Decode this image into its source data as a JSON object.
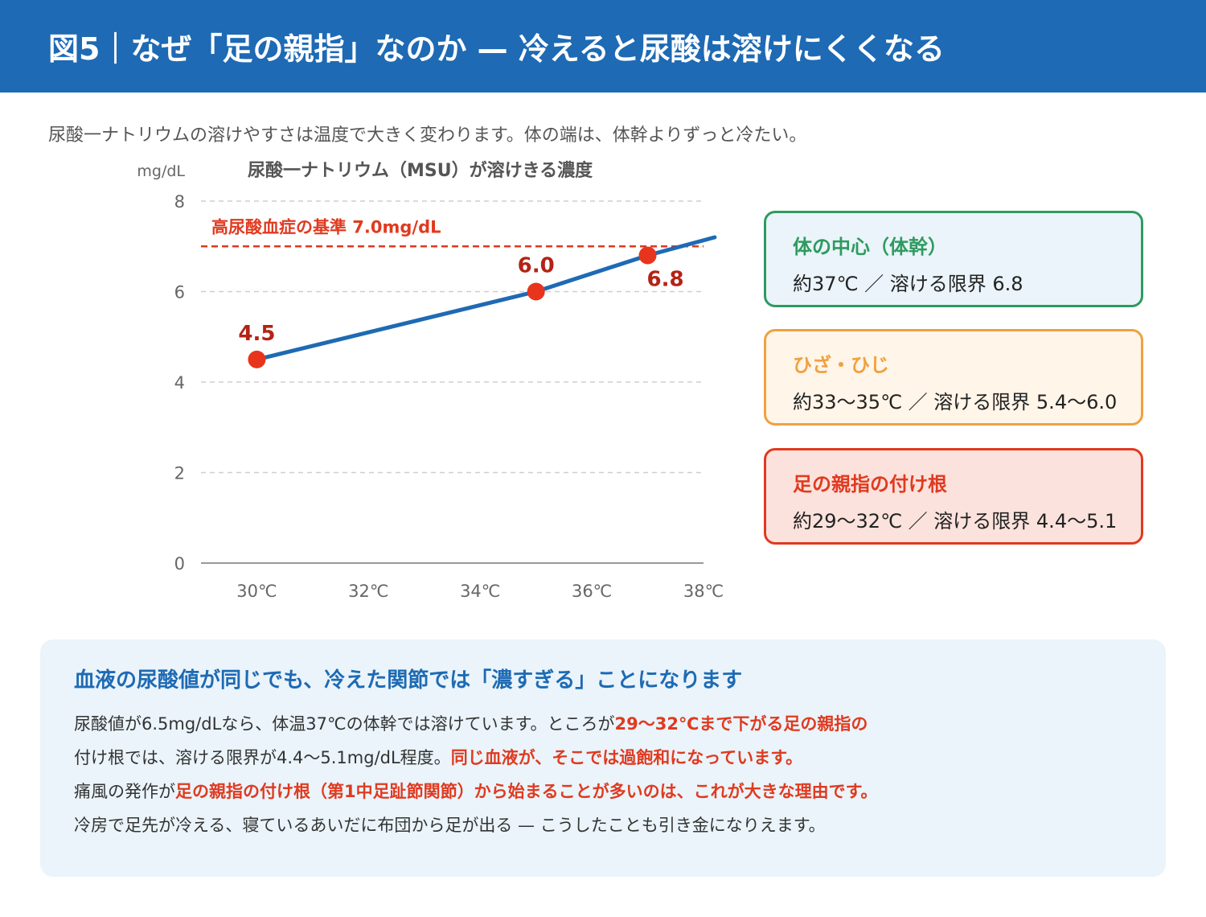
{
  "header": {
    "title": "図5｜なぜ「足の親指」なのか — 冷えると尿酸は溶けにくくなる"
  },
  "subtitle": "尿酸一ナトリウムの溶けやすさは温度で大きく変わります。体の端は、体幹よりずっと冷たい。",
  "chart_data": {
    "type": "line",
    "title": "尿酸一ナトリウム（MSU）が溶けきる濃度",
    "ylabel": "mg/dL",
    "xlabel": "",
    "xlim": [
      29,
      38
    ],
    "ylim": [
      0,
      8
    ],
    "x_ticks": [
      30,
      32,
      34,
      36,
      38
    ],
    "x_tick_labels": [
      "30℃",
      "32℃",
      "34℃",
      "36℃",
      "38℃"
    ],
    "y_ticks": [
      0,
      2,
      4,
      6,
      8
    ],
    "y_tick_labels": [
      "0",
      "2",
      "4",
      "6",
      "8"
    ],
    "grid": true,
    "series": [
      {
        "x": [
          30,
          35,
          37,
          38.2
        ],
        "y": [
          4.5,
          6.0,
          6.8,
          7.2
        ],
        "color": "#1e6ab4"
      }
    ],
    "points": [
      {
        "x": 30,
        "y": 4.5,
        "label": "4.5"
      },
      {
        "x": 35,
        "y": 6.0,
        "label": "6.0"
      },
      {
        "x": 37,
        "y": 6.8,
        "label": "6.8"
      }
    ],
    "point_color": "#e8341c",
    "label_color": "#b32315",
    "reference_line": {
      "y": 7.0,
      "label": "高尿酸血症の基準 7.0mg/dL",
      "color": "#e03a20",
      "style": "dashed"
    }
  },
  "cards": [
    {
      "title": "体の中心（体幹）",
      "text": "約37℃ ／ 溶ける限界 6.8",
      "color": "#2f9a5f"
    },
    {
      "title": "ひざ・ひじ",
      "text": "約33〜35℃ ／ 溶ける限界 5.4〜6.0",
      "color": "#f0a140"
    },
    {
      "title": "足の親指の付け根",
      "text": "約29〜32℃ ／ 溶ける限界 4.4〜5.1",
      "color": "#e03a20"
    }
  ],
  "note": {
    "title": "血液の尿酸値が同じでも、冷えた関節では「濃すぎる」ことになります",
    "line1_a": "尿酸値が6.5mg/dLなら、体温37℃の体幹では溶けています。ところが",
    "line1_b": "29〜32℃まで下がる足の親指の",
    "line2_a": "付け根では、溶ける限界が4.4〜5.1mg/dL程度。",
    "line2_b": "同じ血液が、そこでは過飽和になっています。",
    "line3_a": "痛風の発作が",
    "line3_b": "足の親指の付け根（第1中足趾節関節）から始まることが多いのは、これが大きな理由です。",
    "line4": "冷房で足先が冷える、寝ているあいだに布団から足が出る — こうしたことも引き金になりえます。"
  }
}
